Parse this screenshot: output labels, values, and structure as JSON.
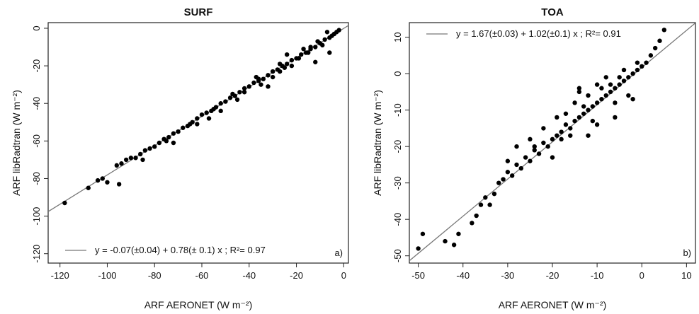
{
  "chart_data": [
    {
      "type": "scatter",
      "panel": "a)",
      "title": "SURF",
      "xlabel": "ARF AERONET (W m⁻²)",
      "ylabel": "ARF libRadtran (W m⁻²)",
      "xlim": [
        -125,
        2
      ],
      "ylim": [
        -125,
        3
      ],
      "xticks": [
        -120,
        -100,
        -80,
        -60,
        -40,
        -20,
        0
      ],
      "yticks": [
        -120,
        -100,
        -80,
        -60,
        -40,
        -20,
        0
      ],
      "grid": false,
      "legend_position": "bottom",
      "legend_text": "y = -0.07(±0.04) + 0.78(± 0.1) x ; R²= 0.97",
      "fit": {
        "intercept": -0.07,
        "slope": 0.78
      },
      "series": [
        {
          "x": [
            -118,
            -108,
            -104,
            -102,
            -100,
            -96,
            -94,
            -92,
            -90,
            -88,
            -86,
            -84,
            -82,
            -80,
            -78,
            -76,
            -74,
            -72,
            -70,
            -68,
            -66,
            -64,
            -62,
            -60,
            -58,
            -56,
            -54,
            -52,
            -50,
            -48,
            -46,
            -44,
            -42,
            -40,
            -38,
            -36,
            -34,
            -32,
            -30,
            -28,
            -26,
            -24,
            -22,
            -20,
            -18,
            -16,
            -14,
            -12,
            -10,
            -8,
            -6,
            -4,
            -3,
            -2,
            -95,
            -85,
            -75,
            -65,
            -55,
            -45,
            -35,
            -25,
            -15,
            -5,
            -57,
            -47,
            -37,
            -27,
            -17,
            -7,
            -30,
            -22,
            -14,
            -9,
            -12,
            -24,
            -32,
            -42,
            -52,
            -62,
            -72,
            -19,
            -11,
            -6,
            -27,
            -36
          ],
          "y": [
            -93,
            -85,
            -81,
            -80,
            -82,
            -73,
            -72,
            -70,
            -69,
            -69,
            -67,
            -65,
            -64,
            -63,
            -61,
            -59,
            -58,
            -56,
            -55,
            -53,
            -52,
            -50,
            -48,
            -46,
            -45,
            -44,
            -42,
            -40,
            -39,
            -37,
            -36,
            -34,
            -32,
            -31,
            -29,
            -28,
            -27,
            -25,
            -23,
            -22,
            -20,
            -19,
            -17,
            -16,
            -14,
            -13,
            -11,
            -10,
            -8,
            -6,
            -5,
            -3,
            -2,
            -1,
            -83,
            -70,
            -60,
            -51,
            -43,
            -38,
            -30,
            -21,
            -13,
            -4,
            -48,
            -35,
            -26,
            -19,
            -11,
            -2,
            -26,
            -20,
            -10,
            -9,
            -18,
            -14,
            -31,
            -34,
            -44,
            -51,
            -61,
            -16,
            -7,
            -13,
            -23,
            -27
          ]
        }
      ]
    },
    {
      "type": "scatter",
      "panel": "b)",
      "title": "TOA",
      "xlabel": "ARF AERONET (W m⁻²)",
      "ylabel": "ARF libRadtran (W m⁻²)",
      "xlim": [
        -52,
        12
      ],
      "ylim": [
        -52,
        14
      ],
      "xticks": [
        -50,
        -40,
        -30,
        -20,
        -10,
        0,
        10
      ],
      "yticks": [
        -50,
        -40,
        -30,
        -20,
        -10,
        0,
        10
      ],
      "grid": false,
      "legend_position": "top-left",
      "legend_text": "y = 1.67(±0.03) + 1.02(±0.1) x ; R²= 0.91",
      "fit": {
        "intercept": 1.67,
        "slope": 1.02
      },
      "series": [
        {
          "x": [
            -50,
            -49,
            -44,
            -42,
            -41,
            -38,
            -37,
            -36,
            -35,
            -34,
            -33,
            -32,
            -31,
            -30,
            -29,
            -28,
            -27,
            -26,
            -25,
            -24,
            -23,
            -22,
            -21,
            -20,
            -19,
            -18,
            -17,
            -16,
            -15,
            -14,
            -13,
            -12,
            -11,
            -10,
            -9,
            -8,
            -7,
            -6,
            -5,
            -4,
            -3,
            -2,
            -1,
            0,
            1,
            2,
            3,
            4,
            5,
            -28,
            -22,
            -18,
            -16,
            -14,
            -12,
            -10,
            -8,
            -6,
            -4,
            -2,
            -20,
            -15,
            -10,
            -5,
            -25,
            -19,
            -13,
            -9,
            -3,
            -30,
            -12,
            -7,
            -17,
            -11,
            -1,
            -24,
            -14,
            -6
          ],
          "y": [
            -48,
            -44,
            -46,
            -47,
            -44,
            -41,
            -39,
            -36,
            -34,
            -36,
            -33,
            -30,
            -29,
            -27,
            -28,
            -25,
            -26,
            -23,
            -24,
            -21,
            -22,
            -19,
            -20,
            -18,
            -17,
            -16,
            -14,
            -15,
            -13,
            -12,
            -11,
            -10,
            -9,
            -8,
            -7,
            -6,
            -5,
            -4,
            -3,
            -2,
            -1,
            0,
            1,
            2,
            3,
            5,
            7,
            9,
            12,
            -20,
            -15,
            -18,
            -17,
            -4,
            -17,
            -3,
            -1,
            -12,
            1,
            -7,
            -23,
            -8,
            -14,
            -1,
            -18,
            -12,
            -9,
            -4,
            -6,
            -24,
            -6,
            -3,
            -11,
            -13,
            3,
            -20,
            -5,
            -8
          ]
        }
      ]
    }
  ]
}
